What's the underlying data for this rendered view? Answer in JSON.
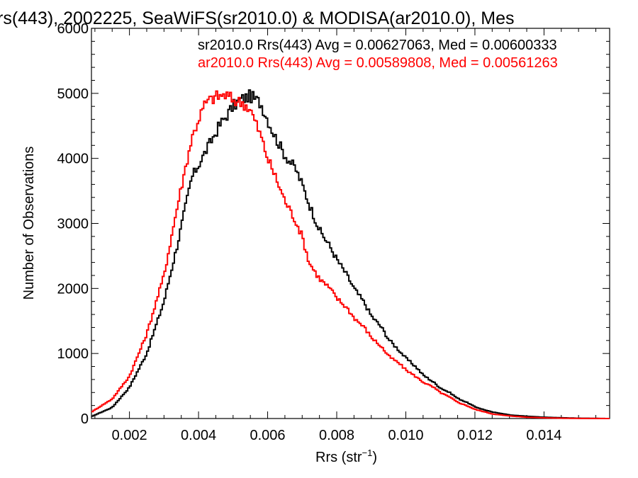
{
  "chart_data": {
    "type": "line",
    "title": "rs(443), 2002225, SeaWiFS(sr2010.0) & MODISA(ar2010.0), Mes",
    "xlabel": "Rrs (str",
    "xlabel_sup": "−1",
    "xlabel_close": ")",
    "ylabel": "Number of Observations",
    "xlim": [
      0.0009,
      0.0159
    ],
    "ylim": [
      0,
      6000
    ],
    "x_ticks": [
      0.002,
      0.004,
      0.006,
      0.008,
      0.01,
      0.012,
      0.014
    ],
    "x_tick_labels": [
      "0.002",
      "0.004",
      "0.006",
      "0.008",
      "0.010",
      "0.012",
      "0.014"
    ],
    "y_ticks": [
      0,
      1000,
      2000,
      3000,
      4000,
      5000,
      6000
    ],
    "y_tick_labels": [
      "0",
      "1000",
      "2000",
      "3000",
      "4000",
      "5000",
      "6000"
    ],
    "annotations": [
      {
        "text": "sr2010.0 Rrs(443) Avg = 0.00627063, Med = 0.00600333",
        "color": "#000000"
      },
      {
        "text": "ar2010.0 Rrs(443) Avg = 0.00589808, Med = 0.00561263",
        "color": "#ff0000"
      }
    ],
    "series": [
      {
        "color": "#000000",
        "style": "step",
        "x": [
          0.0009,
          0.0015,
          0.002,
          0.0025,
          0.003,
          0.0034,
          0.0038,
          0.0042,
          0.0046,
          0.005,
          0.0052,
          0.0055,
          0.0058,
          0.006,
          0.0062,
          0.0065,
          0.0068,
          0.007,
          0.0072,
          0.0075,
          0.0078,
          0.008,
          0.0083,
          0.0085,
          0.0088,
          0.009,
          0.0093,
          0.0095,
          0.0098,
          0.01,
          0.0103,
          0.0105,
          0.0108,
          0.011,
          0.0113,
          0.0115,
          0.0118,
          0.012,
          0.0123,
          0.0125,
          0.0128,
          0.013,
          0.0135,
          0.014,
          0.0145,
          0.015,
          0.0159
        ],
        "y": [
          30,
          170,
          480,
          1000,
          1800,
          2700,
          3700,
          4100,
          4500,
          4800,
          4900,
          4960,
          4850,
          4600,
          4350,
          4050,
          3850,
          3600,
          3300,
          2900,
          2650,
          2450,
          2200,
          2000,
          1780,
          1580,
          1400,
          1220,
          1050,
          930,
          790,
          670,
          560,
          470,
          390,
          310,
          240,
          180,
          130,
          100,
          75,
          55,
          35,
          20,
          12,
          5,
          0
        ]
      },
      {
        "color": "#ff0000",
        "style": "step",
        "x": [
          0.0009,
          0.0012,
          0.0015,
          0.002,
          0.0025,
          0.003,
          0.0034,
          0.0038,
          0.004,
          0.0042,
          0.0045,
          0.0048,
          0.005,
          0.0053,
          0.0055,
          0.0058,
          0.006,
          0.0062,
          0.0065,
          0.0068,
          0.007,
          0.0072,
          0.0075,
          0.0078,
          0.008,
          0.0083,
          0.0085,
          0.0088,
          0.009,
          0.0093,
          0.0095,
          0.0098,
          0.01,
          0.0103,
          0.0105,
          0.0108,
          0.011,
          0.0113,
          0.0115,
          0.0118,
          0.012,
          0.0123,
          0.0125,
          0.013,
          0.0135,
          0.014,
          0.0145,
          0.015,
          0.0159
        ],
        "y": [
          100,
          200,
          300,
          650,
          1300,
          2200,
          3300,
          4300,
          4600,
          4850,
          4950,
          4970,
          4900,
          4850,
          4750,
          4350,
          4000,
          3750,
          3350,
          3050,
          2800,
          2400,
          2150,
          2000,
          1850,
          1700,
          1550,
          1400,
          1250,
          1100,
          960,
          850,
          750,
          640,
          560,
          480,
          400,
          320,
          250,
          190,
          140,
          100,
          70,
          40,
          20,
          10,
          5,
          2,
          0
        ]
      }
    ]
  }
}
